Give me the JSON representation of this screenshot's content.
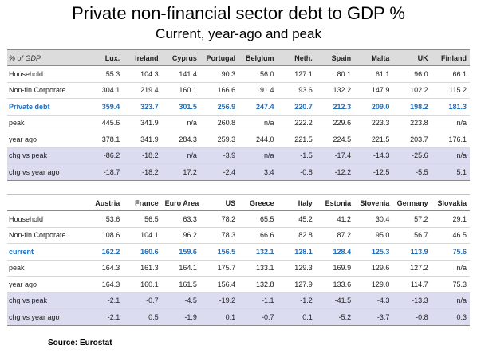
{
  "title": "Private non-financial sector debt to GDP %",
  "subtitle": "Current, year-ago and peak",
  "table_a": {
    "corner": "% of GDP",
    "columns": [
      "Lux.",
      "Ireland",
      "Cyprus",
      "Portugal",
      "Belgium",
      "Neth.",
      "Spain",
      "Malta",
      "UK",
      "Finland"
    ],
    "rows": [
      {
        "label": "Household",
        "values": [
          "55.3",
          "104.3",
          "141.4",
          "90.3",
          "56.0",
          "127.1",
          "80.1",
          "61.1",
          "96.0",
          "66.1"
        ]
      },
      {
        "label": "Non-fin Corporate",
        "values": [
          "304.1",
          "219.4",
          "160.1",
          "166.6",
          "191.4",
          "93.6",
          "132.2",
          "147.9",
          "102.2",
          "115.2"
        ]
      },
      {
        "label": "Private debt",
        "values": [
          "359.4",
          "323.7",
          "301.5",
          "256.9",
          "247.4",
          "220.7",
          "212.3",
          "209.0",
          "198.2",
          "181.3"
        ]
      },
      {
        "label": "peak",
        "values": [
          "445.6",
          "341.9",
          "n/a",
          "260.8",
          "n/a",
          "222.2",
          "229.6",
          "223.3",
          "223.8",
          "n/a"
        ]
      },
      {
        "label": "year ago",
        "values": [
          "378.1",
          "341.9",
          "284.3",
          "259.3",
          "244.0",
          "221.5",
          "224.5",
          "221.5",
          "203.7",
          "176.1"
        ]
      },
      {
        "label": "chg vs peak",
        "values": [
          "-86.2",
          "-18.2",
          "n/a",
          "-3.9",
          "n/a",
          "-1.5",
          "-17.4",
          "-14.3",
          "-25.6",
          "n/a"
        ]
      },
      {
        "label": "chg vs year ago",
        "values": [
          "-18.7",
          "-18.2",
          "17.2",
          "-2.4",
          "3.4",
          "-0.8",
          "-12.2",
          "-12.5",
          "-5.5",
          "5.1"
        ]
      }
    ]
  },
  "table_b": {
    "corner": "",
    "columns": [
      "Austria",
      "France",
      "Euro Area",
      "US",
      "Greece",
      "Italy",
      "Estonia",
      "Slovenia",
      "Germany",
      "Slovakia"
    ],
    "rows": [
      {
        "label": "Household",
        "values": [
          "53.6",
          "56.5",
          "63.3",
          "78.2",
          "65.5",
          "45.2",
          "41.2",
          "30.4",
          "57.2",
          "29.1"
        ]
      },
      {
        "label": "Non-fin Corporate",
        "values": [
          "108.6",
          "104.1",
          "96.2",
          "78.3",
          "66.6",
          "82.8",
          "87.2",
          "95.0",
          "56.7",
          "46.5"
        ]
      },
      {
        "label": "current",
        "values": [
          "162.2",
          "160.6",
          "159.6",
          "156.5",
          "132.1",
          "128.1",
          "128.4",
          "125.3",
          "113.9",
          "75.6"
        ]
      },
      {
        "label": "peak",
        "values": [
          "164.3",
          "161.3",
          "164.1",
          "175.7",
          "133.1",
          "129.3",
          "169.9",
          "129.6",
          "127.2",
          "n/a"
        ]
      },
      {
        "label": "year ago",
        "values": [
          "164.3",
          "160.1",
          "161.5",
          "156.4",
          "132.8",
          "127.9",
          "133.6",
          "129.0",
          "114.7",
          "75.3"
        ]
      },
      {
        "label": "chg vs peak",
        "values": [
          "-2.1",
          "-0.7",
          "-4.5",
          "-19.2",
          "-1.1",
          "-1.2",
          "-41.5",
          "-4.3",
          "-13.3",
          "n/a"
        ]
      },
      {
        "label": "chg vs year ago",
        "values": [
          "-2.1",
          "0.5",
          "-1.9",
          "0.1",
          "-0.7",
          "0.1",
          "-5.2",
          "-3.7",
          "-0.8",
          "0.3"
        ]
      }
    ]
  },
  "source": "Source:  Eurostat",
  "colors": {
    "highlight_text": "#1f6fbf",
    "change_row_bg": "#dcdcf0",
    "header_bg": "#dcdcdc"
  }
}
